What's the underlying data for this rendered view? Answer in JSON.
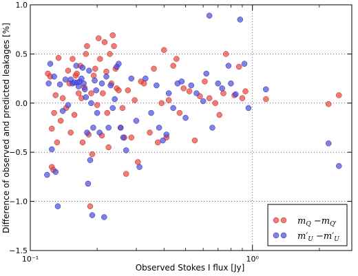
{
  "chart_data": {
    "type": "scatter",
    "xlabel": "Observed Stokes I flux [Jy]",
    "ylabel": "Difference of observed and predicted leakages [%]",
    "xscale": "log",
    "xlim": [
      0.1,
      2.8
    ],
    "ylim": [
      -1.5,
      1.0
    ],
    "x_major_ticks": [
      0.1,
      1.0
    ],
    "x_tick_labels": [
      "10⁻¹",
      "10⁰"
    ],
    "y_ticks": [
      -1.5,
      -1.0,
      -0.5,
      0.0,
      0.5,
      1.0
    ],
    "y_tick_labels": [
      "−1.5",
      "−1.0",
      "−0.5",
      "0.0",
      "0.5",
      "1.0"
    ],
    "grid": {
      "y_major": true,
      "x_major": true,
      "style": "dotted"
    },
    "legend_position": "lower-right",
    "series": [
      {
        "name": "mQ − mQ'",
        "color": "#e8453c",
        "points": [
          [
            0.12,
            0.3
          ],
          [
            0.123,
            0.27
          ],
          [
            0.125,
            -0.65
          ],
          [
            0.127,
            -0.68
          ],
          [
            0.125,
            -0.26
          ],
          [
            0.128,
            -0.1
          ],
          [
            0.13,
            0.08
          ],
          [
            0.132,
            -0.4
          ],
          [
            0.134,
            0.46
          ],
          [
            0.137,
            -0.18
          ],
          [
            0.14,
            0.05
          ],
          [
            0.145,
            -0.05
          ],
          [
            0.148,
            0.33
          ],
          [
            0.15,
            0.2
          ],
          [
            0.152,
            -0.3
          ],
          [
            0.155,
            0.45
          ],
          [
            0.158,
            -0.12
          ],
          [
            0.16,
            0.28
          ],
          [
            0.162,
            0.3
          ],
          [
            0.165,
            0.1
          ],
          [
            0.168,
            0.38
          ],
          [
            0.17,
            0.05
          ],
          [
            0.172,
            -0.4
          ],
          [
            0.175,
            0.16
          ],
          [
            0.178,
            0.5
          ],
          [
            0.18,
            0.58
          ],
          [
            0.183,
            -0.32
          ],
          [
            0.186,
            -1.05
          ],
          [
            0.188,
            0.1
          ],
          [
            0.19,
            -0.52
          ],
          [
            0.193,
            0.28
          ],
          [
            0.196,
            0.35
          ],
          [
            0.2,
            -0.02
          ],
          [
            0.203,
            0.66
          ],
          [
            0.206,
            0.45
          ],
          [
            0.21,
            -0.33
          ],
          [
            0.212,
            0.1
          ],
          [
            0.216,
            0.62
          ],
          [
            0.22,
            0.32
          ],
          [
            0.222,
            -0.1
          ],
          [
            0.225,
            -0.45
          ],
          [
            0.228,
            0.5
          ],
          [
            0.232,
            0.2
          ],
          [
            0.235,
            0.69
          ],
          [
            0.238,
            0.58
          ],
          [
            0.242,
            0.35
          ],
          [
            0.245,
            0.15
          ],
          [
            0.25,
            0.13
          ],
          [
            0.255,
            -0.25
          ],
          [
            0.26,
            -0.05
          ],
          [
            0.265,
            -0.35
          ],
          [
            0.27,
            -0.72
          ],
          [
            0.275,
            0.13
          ],
          [
            0.285,
            -0.35
          ],
          [
            0.295,
            0.03
          ],
          [
            0.305,
            -0.6
          ],
          [
            0.315,
            0.22
          ],
          [
            0.325,
            0.2
          ],
          [
            0.345,
            -0.3
          ],
          [
            0.36,
            0.35
          ],
          [
            0.375,
            -0.4
          ],
          [
            0.39,
            0.0
          ],
          [
            0.4,
            0.54
          ],
          [
            0.41,
            -0.35
          ],
          [
            0.42,
            0.03
          ],
          [
            0.44,
            0.38
          ],
          [
            0.455,
            0.45
          ],
          [
            0.47,
            -0.1
          ],
          [
            0.49,
            0.15
          ],
          [
            0.52,
            0.12
          ],
          [
            0.55,
            -0.38
          ],
          [
            0.58,
            0.07
          ],
          [
            0.61,
            0.22
          ],
          [
            0.64,
            0.05
          ],
          [
            0.68,
            0.0
          ],
          [
            0.71,
            -0.12
          ],
          [
            0.74,
            0.1
          ],
          [
            0.76,
            0.5
          ],
          [
            0.83,
            0.08
          ],
          [
            0.87,
            0.37
          ],
          [
            0.9,
            0.05
          ],
          [
            0.93,
            0.12
          ],
          [
            1.15,
            0.04
          ],
          [
            2.2,
            -0.01
          ],
          [
            2.45,
            0.08
          ]
        ]
      },
      {
        "name": "m'U − m'U",
        "color": "#4a4ae0",
        "points": [
          [
            0.119,
            -0.73
          ],
          [
            0.121,
            0.2
          ],
          [
            0.123,
            0.4
          ],
          [
            0.125,
            -0.47
          ],
          [
            0.128,
            0.27
          ],
          [
            0.13,
            -0.7
          ],
          [
            0.133,
            -1.05
          ],
          [
            0.136,
            0.19
          ],
          [
            0.14,
            -0.08
          ],
          [
            0.144,
            0.24
          ],
          [
            0.148,
            -0.02
          ],
          [
            0.152,
            0.24
          ],
          [
            0.155,
            0.2
          ],
          [
            0.158,
            0.21
          ],
          [
            0.161,
            0.38
          ],
          [
            0.163,
            0.21
          ],
          [
            0.165,
            0.17
          ],
          [
            0.167,
            0.22
          ],
          [
            0.17,
            0.25
          ],
          [
            0.172,
            0.36
          ],
          [
            0.174,
            0.2
          ],
          [
            0.176,
            0.14
          ],
          [
            0.178,
            0.06
          ],
          [
            0.18,
            -0.3
          ],
          [
            0.182,
            -0.82
          ],
          [
            0.184,
            0.33
          ],
          [
            0.186,
            -0.58
          ],
          [
            0.188,
            0.0
          ],
          [
            0.19,
            -1.14
          ],
          [
            0.192,
            -0.25
          ],
          [
            0.195,
            0.23
          ],
          [
            0.198,
            0.13
          ],
          [
            0.2,
            -0.1
          ],
          [
            0.205,
            -0.3
          ],
          [
            0.21,
            0.2
          ],
          [
            0.215,
            -1.16
          ],
          [
            0.22,
            0.27
          ],
          [
            0.225,
            -0.25
          ],
          [
            0.23,
            0.18
          ],
          [
            0.235,
            -0.05
          ],
          [
            0.24,
            0.04
          ],
          [
            0.245,
            0.37
          ],
          [
            0.25,
            0.4
          ],
          [
            0.255,
            -0.25
          ],
          [
            0.262,
            -0.35
          ],
          [
            0.27,
            -0.48
          ],
          [
            0.285,
            0.25
          ],
          [
            0.3,
            -0.18
          ],
          [
            0.31,
            -0.65
          ],
          [
            0.33,
            0.25
          ],
          [
            0.35,
            -0.1
          ],
          [
            0.37,
            0.18
          ],
          [
            0.38,
            -0.25
          ],
          [
            0.395,
            -0.38
          ],
          [
            0.41,
            -0.32
          ],
          [
            0.42,
            0.1
          ],
          [
            0.44,
            -0.05
          ],
          [
            0.46,
            0.2
          ],
          [
            0.48,
            0.22
          ],
          [
            0.5,
            -0.15
          ],
          [
            0.53,
            0.18
          ],
          [
            0.56,
            0.1
          ],
          [
            0.6,
            0.02
          ],
          [
            0.62,
            0.3
          ],
          [
            0.64,
            0.89
          ],
          [
            0.66,
            -0.25
          ],
          [
            0.7,
            0.2
          ],
          [
            0.73,
            0.15
          ],
          [
            0.78,
            0.38
          ],
          [
            0.8,
            0.2
          ],
          [
            0.84,
            0.09
          ],
          [
            0.88,
            0.85
          ],
          [
            0.92,
            0.4
          ],
          [
            0.96,
            -0.05
          ],
          [
            1.15,
            0.14
          ],
          [
            2.2,
            -0.41
          ],
          [
            2.45,
            -0.64
          ]
        ]
      }
    ]
  },
  "legend": {
    "items": [
      {
        "main_left": "m",
        "sub_left": "Q",
        "sep": " −",
        "main_right": "m",
        "sub_right": "Q'"
      },
      {
        "main_left": "m′",
        "sub_left": "U",
        "sep": " −",
        "main_right": "m′",
        "sub_right": "U"
      }
    ]
  }
}
